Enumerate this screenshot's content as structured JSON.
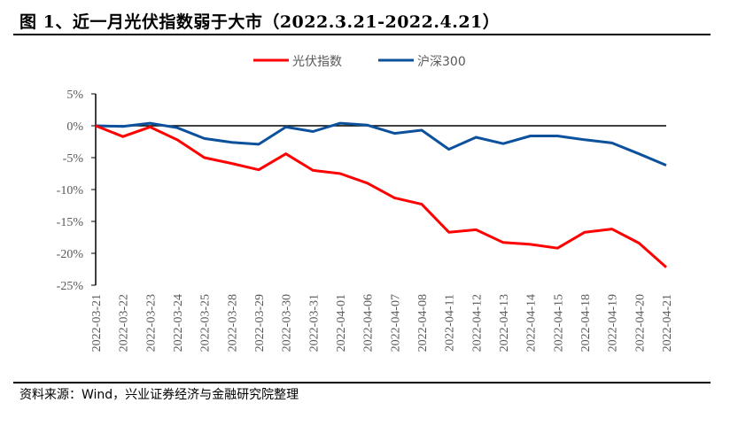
{
  "title": "图 1、近一月光伏指数弱于大市（2022.3.21-2022.4.21）",
  "source": "资料来源：Wind，兴业证券经济与金融研究院整理",
  "chart_data": {
    "type": "line",
    "title": "图 1、近一月光伏指数弱于大市（2022.3.21-2022.4.21）",
    "xlabel": "",
    "ylabel": "",
    "ylim": [
      -25,
      5
    ],
    "yticks": [
      5,
      0,
      -5,
      -10,
      -15,
      -20,
      -25
    ],
    "ytick_labels": [
      "5%",
      "0%",
      "-5%",
      "-10%",
      "-15%",
      "-20%",
      "-25%"
    ],
    "grid": false,
    "legend_position": "top-center",
    "x": [
      "2022-03-21",
      "2022-03-22",
      "2022-03-23",
      "2022-03-24",
      "2022-03-25",
      "2022-03-28",
      "2022-03-29",
      "2022-03-30",
      "2022-03-31",
      "2022-04-01",
      "2022-04-06",
      "2022-04-07",
      "2022-04-08",
      "2022-04-11",
      "2022-04-12",
      "2022-04-13",
      "2022-04-14",
      "2022-04-15",
      "2022-04-18",
      "2022-04-19",
      "2022-04-20",
      "2022-04-21"
    ],
    "series": [
      {
        "name": "光伏指数",
        "color": "#FF0000",
        "values": [
          0,
          -1.7,
          -0.2,
          -2.2,
          -5.0,
          -5.9,
          -6.9,
          -4.4,
          -7.0,
          -7.5,
          -9.0,
          -11.3,
          -12.3,
          -16.7,
          -16.3,
          -18.3,
          -18.6,
          -19.2,
          -16.7,
          -16.2,
          -18.4,
          -22.2
        ]
      },
      {
        "name": "沪深300",
        "color": "#0C519C",
        "values": [
          0,
          -0.1,
          0.4,
          -0.3,
          -2.0,
          -2.6,
          -2.9,
          -0.2,
          -0.9,
          0.4,
          0.1,
          -1.2,
          -0.7,
          -3.7,
          -1.8,
          -2.8,
          -1.6,
          -1.6,
          -2.2,
          -2.7,
          -4.4,
          -6.2
        ]
      }
    ]
  }
}
